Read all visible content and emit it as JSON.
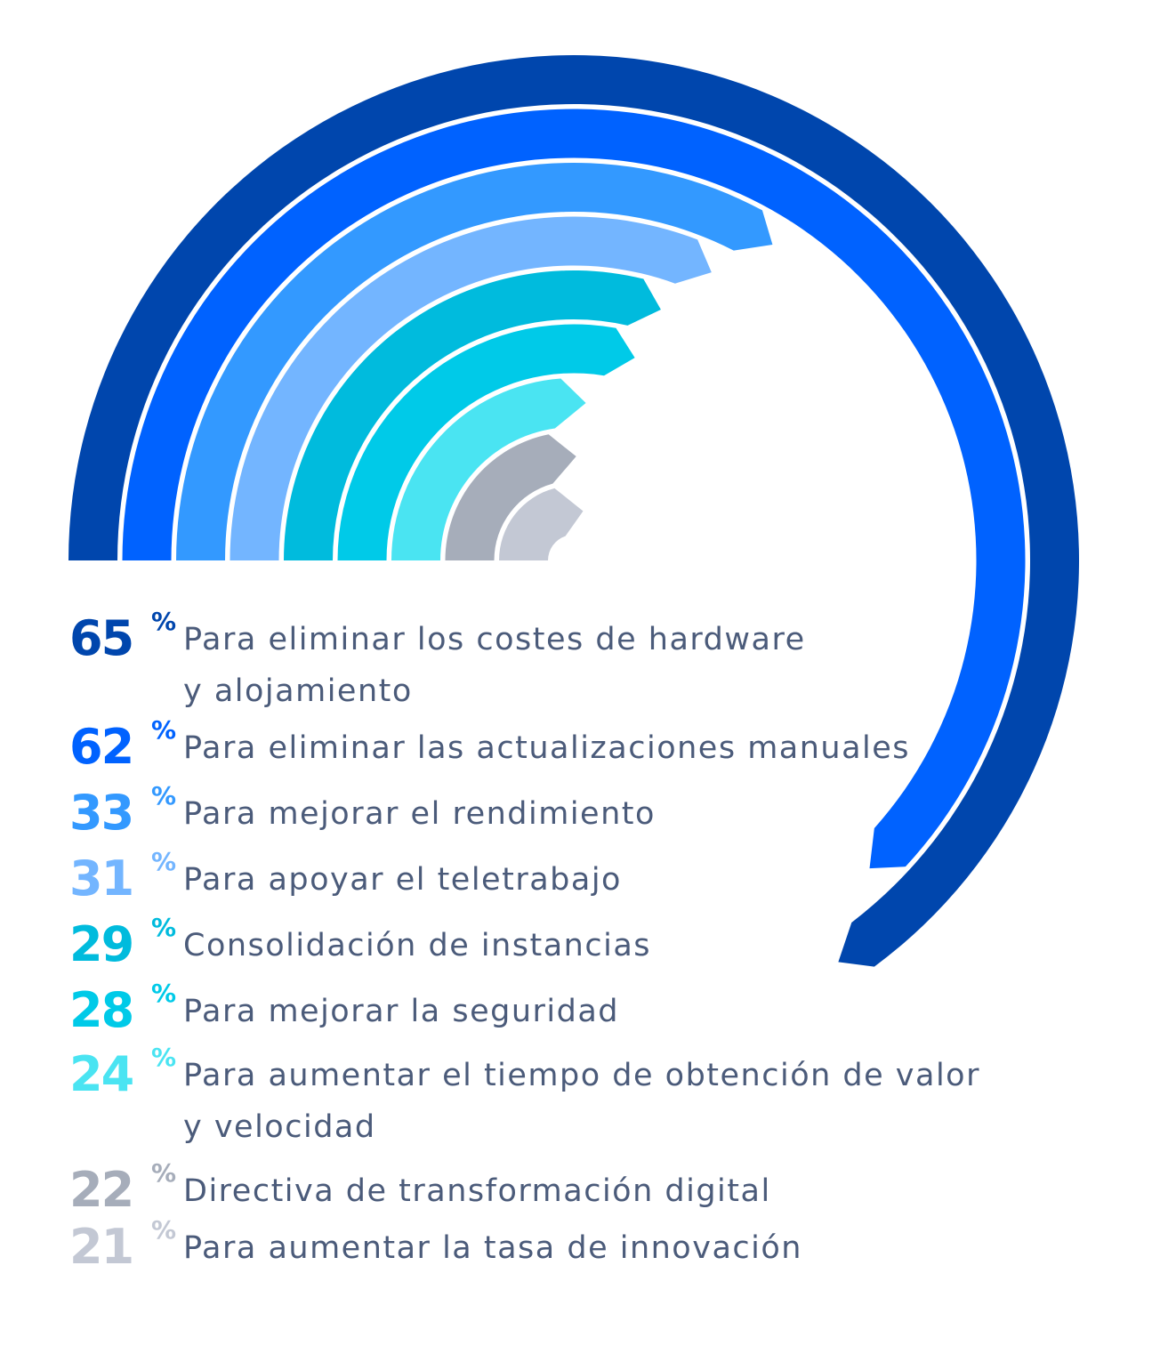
{
  "chart_data": {
    "type": "radial-bar",
    "full_circle_percent": 100,
    "items": [
      {
        "value": 65,
        "percent_sign": "%",
        "label": "Para eliminar los costes de hardware\ny alojamiento",
        "color": "#0046AD"
      },
      {
        "value": 62,
        "percent_sign": "%",
        "label": "Para eliminar las actualizaciones manuales",
        "color": "#0062FF"
      },
      {
        "value": 33,
        "percent_sign": "%",
        "label": "Para mejorar el rendimiento",
        "color": "#3399FF"
      },
      {
        "value": 31,
        "percent_sign": "%",
        "label": "Para apoyar el teletrabajo",
        "color": "#73B5FF"
      },
      {
        "value": 29,
        "percent_sign": "%",
        "label": "Consolidación de instancias",
        "color": "#00BBDD"
      },
      {
        "value": 28,
        "percent_sign": "%",
        "label": "Para mejorar la seguridad",
        "color": "#00CAE8"
      },
      {
        "value": 24,
        "percent_sign": "%",
        "label": "Para aumentar el tiempo de obtención de valor\ny velocidad",
        "color": "#4AE4F2"
      },
      {
        "value": 22,
        "percent_sign": "%",
        "label": "Directiva de transformación digital",
        "color": "#A6ADBA"
      },
      {
        "value": 21,
        "percent_sign": "%",
        "label": "Para aumentar la tasa de innovación",
        "color": "#C3C8D4"
      }
    ]
  }
}
